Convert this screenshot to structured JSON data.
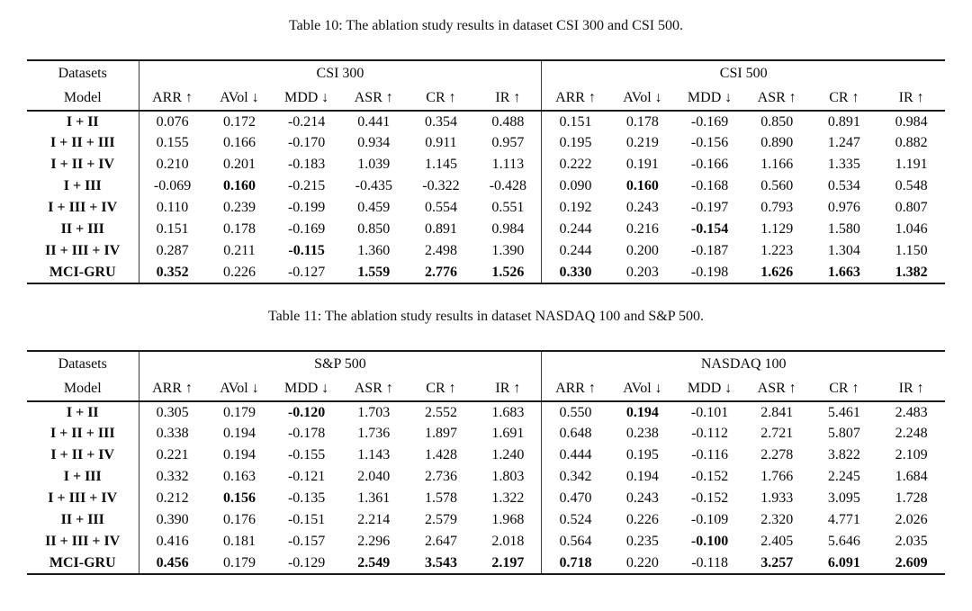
{
  "page": {
    "background": "#ffffff",
    "text_color": "#0a0a0a",
    "rule_color": "#1a1a1a"
  },
  "tables": [
    {
      "caption": "Table 10: The ablation study results in dataset CSI 300 and CSI 500.",
      "header": {
        "datasets_label": "Datasets",
        "model_label": "Model",
        "groups": [
          "CSI 300",
          "CSI 500"
        ],
        "metrics": [
          "ARR ↑",
          "AVol ↓",
          "MDD ↓",
          "ASR ↑",
          "CR ↑",
          "IR ↑"
        ]
      },
      "rows": [
        {
          "model": "I + II",
          "values": [
            "0.076",
            "0.172",
            "-0.214",
            "0.441",
            "0.354",
            "0.488",
            "0.151",
            "0.178",
            "-0.169",
            "0.850",
            "0.891",
            "0.984"
          ],
          "bold": []
        },
        {
          "model": "I + II + III",
          "values": [
            "0.155",
            "0.166",
            "-0.170",
            "0.934",
            "0.911",
            "0.957",
            "0.195",
            "0.219",
            "-0.156",
            "0.890",
            "1.247",
            "0.882"
          ],
          "bold": []
        },
        {
          "model": "I + II + IV",
          "values": [
            "0.210",
            "0.201",
            "-0.183",
            "1.039",
            "1.145",
            "1.113",
            "0.222",
            "0.191",
            "-0.166",
            "1.166",
            "1.335",
            "1.191"
          ],
          "bold": []
        },
        {
          "model": "I + III",
          "values": [
            "-0.069",
            "0.160",
            "-0.215",
            "-0.435",
            "-0.322",
            "-0.428",
            "0.090",
            "0.160",
            "-0.168",
            "0.560",
            "0.534",
            "0.548"
          ],
          "bold": [
            1,
            7
          ]
        },
        {
          "model": "I + III + IV",
          "values": [
            "0.110",
            "0.239",
            "-0.199",
            "0.459",
            "0.554",
            "0.551",
            "0.192",
            "0.243",
            "-0.197",
            "0.793",
            "0.976",
            "0.807"
          ],
          "bold": []
        },
        {
          "model": "II + III",
          "values": [
            "0.151",
            "0.178",
            "-0.169",
            "0.850",
            "0.891",
            "0.984",
            "0.244",
            "0.216",
            "-0.154",
            "1.129",
            "1.580",
            "1.046"
          ],
          "bold": [
            8
          ]
        },
        {
          "model": "II + III + IV",
          "values": [
            "0.287",
            "0.211",
            "-0.115",
            "1.360",
            "2.498",
            "1.390",
            "0.244",
            "0.200",
            "-0.187",
            "1.223",
            "1.304",
            "1.150"
          ],
          "bold": [
            2
          ]
        },
        {
          "model": "MCI-GRU",
          "values": [
            "0.352",
            "0.226",
            "-0.127",
            "1.559",
            "2.776",
            "1.526",
            "0.330",
            "0.203",
            "-0.198",
            "1.626",
            "1.663",
            "1.382"
          ],
          "bold": [
            0,
            3,
            4,
            5,
            6,
            9,
            10,
            11
          ]
        }
      ]
    },
    {
      "caption": "Table 11: The ablation study results in dataset NASDAQ 100 and S&P 500.",
      "header": {
        "datasets_label": "Datasets",
        "model_label": "Model",
        "groups": [
          "S&P 500",
          "NASDAQ 100"
        ],
        "metrics": [
          "ARR ↑",
          "AVol ↓",
          "MDD ↓",
          "ASR ↑",
          "CR ↑",
          "IR ↑"
        ]
      },
      "rows": [
        {
          "model": "I + II",
          "values": [
            "0.305",
            "0.179",
            "-0.120",
            "1.703",
            "2.552",
            "1.683",
            "0.550",
            "0.194",
            "-0.101",
            "2.841",
            "5.461",
            "2.483"
          ],
          "bold": [
            2,
            7
          ]
        },
        {
          "model": "I + II + III",
          "values": [
            "0.338",
            "0.194",
            "-0.178",
            "1.736",
            "1.897",
            "1.691",
            "0.648",
            "0.238",
            "-0.112",
            "2.721",
            "5.807",
            "2.248"
          ],
          "bold": []
        },
        {
          "model": "I + II + IV",
          "values": [
            "0.221",
            "0.194",
            "-0.155",
            "1.143",
            "1.428",
            "1.240",
            "0.444",
            "0.195",
            "-0.116",
            "2.278",
            "3.822",
            "2.109"
          ],
          "bold": []
        },
        {
          "model": "I + III",
          "values": [
            "0.332",
            "0.163",
            "-0.121",
            "2.040",
            "2.736",
            "1.803",
            "0.342",
            "0.194",
            "-0.152",
            "1.766",
            "2.245",
            "1.684"
          ],
          "bold": []
        },
        {
          "model": "I + III + IV",
          "values": [
            "0.212",
            "0.156",
            "-0.135",
            "1.361",
            "1.578",
            "1.322",
            "0.470",
            "0.243",
            "-0.152",
            "1.933",
            "3.095",
            "1.728"
          ],
          "bold": [
            1
          ]
        },
        {
          "model": "II + III",
          "values": [
            "0.390",
            "0.176",
            "-0.151",
            "2.214",
            "2.579",
            "1.968",
            "0.524",
            "0.226",
            "-0.109",
            "2.320",
            "4.771",
            "2.026"
          ],
          "bold": []
        },
        {
          "model": "II + III + IV",
          "values": [
            "0.416",
            "0.181",
            "-0.157",
            "2.296",
            "2.647",
            "2.018",
            "0.564",
            "0.235",
            "-0.100",
            "2.405",
            "5.646",
            "2.035"
          ],
          "bold": [
            8
          ]
        },
        {
          "model": "MCI-GRU",
          "values": [
            "0.456",
            "0.179",
            "-0.129",
            "2.549",
            "3.543",
            "2.197",
            "0.718",
            "0.220",
            "-0.118",
            "3.257",
            "6.091",
            "2.609"
          ],
          "bold": [
            0,
            3,
            4,
            5,
            6,
            9,
            10,
            11
          ]
        }
      ]
    }
  ]
}
